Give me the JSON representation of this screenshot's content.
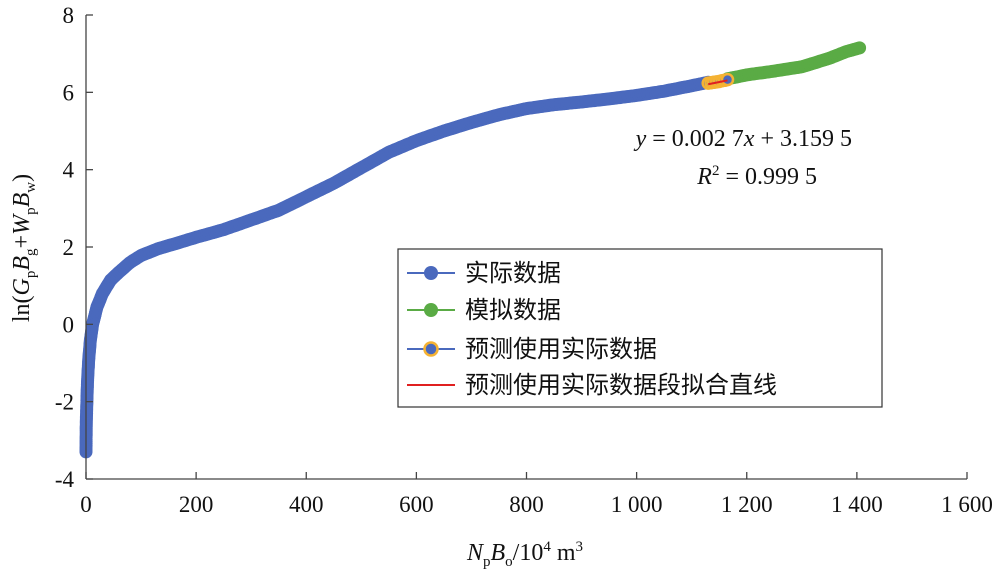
{
  "chart_data": {
    "type": "scatter",
    "xlim": [
      0,
      1600
    ],
    "ylim": [
      -4,
      8
    ],
    "x_ticks": [
      0,
      200,
      400,
      600,
      800,
      1000,
      1200,
      1400,
      1600
    ],
    "x_tick_labels": [
      "0",
      "200",
      "400",
      "600",
      "800",
      "1 000",
      "1 200",
      "1 400",
      "1 600"
    ],
    "y_ticks": [
      -4,
      -2,
      0,
      2,
      4,
      6,
      8
    ],
    "y_tick_labels": [
      "-4",
      "-2",
      "0",
      "2",
      "4",
      "6",
      "8"
    ],
    "xlabel": {
      "v1": "N",
      "s1": "p",
      "v2": "B",
      "s2": "o",
      "rest": "/10",
      "sup": "4",
      "unit": " m",
      "unit_sup": "3"
    },
    "ylabel": {
      "pre": "ln(",
      "v1": "G",
      "s1": "p",
      "v2": "B",
      "s2": "g",
      "plus": "+",
      "v3": "W",
      "s3": "p",
      "v4": "B",
      "s4": "w",
      "post": ")"
    },
    "grid": false,
    "legend_position": "center-right",
    "series": [
      {
        "name": "实际数据",
        "color": "#4a69bd",
        "marker": "circle",
        "points": [
          [
            0,
            -3.3
          ],
          [
            0.5,
            -2.55
          ],
          [
            1,
            -2.3
          ],
          [
            2,
            -1.8
          ],
          [
            3,
            -1.4
          ],
          [
            5,
            -0.9
          ],
          [
            8,
            -0.4
          ],
          [
            12,
            0.0
          ],
          [
            20,
            0.45
          ],
          [
            30,
            0.8
          ],
          [
            45,
            1.15
          ],
          [
            60,
            1.35
          ],
          [
            80,
            1.6
          ],
          [
            100,
            1.78
          ],
          [
            130,
            1.95
          ],
          [
            170,
            2.12
          ],
          [
            200,
            2.25
          ],
          [
            250,
            2.45
          ],
          [
            300,
            2.7
          ],
          [
            350,
            2.95
          ],
          [
            400,
            3.3
          ],
          [
            450,
            3.65
          ],
          [
            500,
            4.05
          ],
          [
            550,
            4.45
          ],
          [
            600,
            4.75
          ],
          [
            650,
            5.0
          ],
          [
            700,
            5.22
          ],
          [
            750,
            5.42
          ],
          [
            800,
            5.58
          ],
          [
            850,
            5.68
          ],
          [
            900,
            5.75
          ],
          [
            950,
            5.83
          ],
          [
            1000,
            5.92
          ],
          [
            1050,
            6.03
          ],
          [
            1100,
            6.17
          ],
          [
            1130,
            6.26
          ]
        ]
      },
      {
        "name": "模拟数据",
        "color": "#5aab45",
        "marker": "circle",
        "points": [
          [
            1165,
            6.35
          ],
          [
            1200,
            6.45
          ],
          [
            1250,
            6.55
          ],
          [
            1300,
            6.66
          ],
          [
            1350,
            6.88
          ],
          [
            1380,
            7.05
          ],
          [
            1405,
            7.15
          ]
        ]
      },
      {
        "name": "预测使用实际数据",
        "color": "#4a69bd",
        "edge_color": "#f5b233",
        "marker": "circle",
        "points": [
          [
            1130,
            6.24
          ],
          [
            1135,
            6.25
          ],
          [
            1140,
            6.26
          ],
          [
            1145,
            6.27
          ],
          [
            1150,
            6.28
          ],
          [
            1155,
            6.3
          ],
          [
            1160,
            6.31
          ],
          [
            1165,
            6.33
          ]
        ]
      },
      {
        "name": "预测使用实际数据段拟合直线",
        "color": "#e02020",
        "marker": "line",
        "points": [
          [
            1130,
            6.21
          ],
          [
            1165,
            6.31
          ]
        ]
      }
    ],
    "annotation": {
      "equation": {
        "y": "y",
        "eq": " = 0.002 7",
        "x": "x",
        "rest": " + 3.159 5"
      },
      "r2": {
        "r": "R",
        "sup": "2",
        "rest": " = 0.999 5"
      }
    }
  }
}
